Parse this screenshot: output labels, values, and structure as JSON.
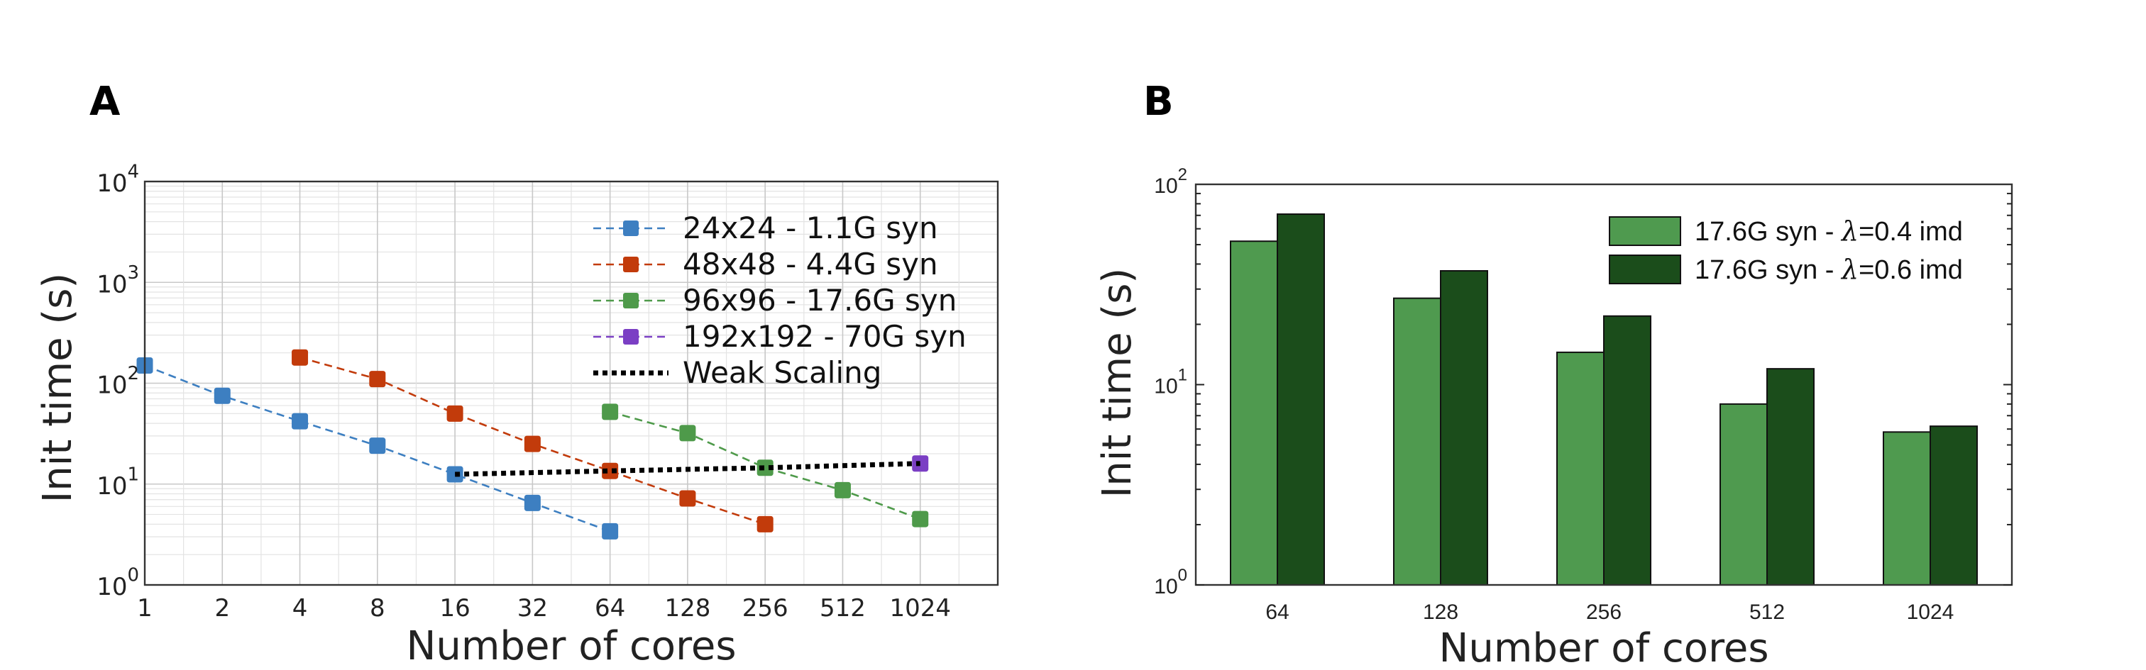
{
  "chart_data": [
    {
      "panel": "A",
      "type": "line",
      "title": "",
      "xlabel": "Number of cores",
      "ylabel": "Init time (s)",
      "xscale": "log2",
      "yscale": "log10",
      "xlim": [
        1,
        2048
      ],
      "ylim": [
        1,
        10000
      ],
      "xticks": [
        "1",
        "2",
        "4",
        "8",
        "16",
        "32",
        "64",
        "128",
        "256",
        "512",
        "1024"
      ],
      "xtick_values": [
        1,
        2,
        4,
        8,
        16,
        32,
        64,
        128,
        256,
        512,
        1024
      ],
      "yticks": [
        {
          "value": 1,
          "base": "10",
          "exp": "0"
        },
        {
          "value": 10,
          "base": "10",
          "exp": "1"
        },
        {
          "value": 100,
          "base": "10",
          "exp": "2"
        },
        {
          "value": 1000,
          "base": "10",
          "exp": "3"
        },
        {
          "value": 10000,
          "base": "10",
          "exp": "4"
        }
      ],
      "grid": true,
      "legend_position": "top-right",
      "series": [
        {
          "name": "24x24 - 1.1G syn",
          "color": "#3d7fc1",
          "style": "dashed",
          "marker": "square",
          "x": [
            1,
            2,
            4,
            8,
            16,
            32,
            64
          ],
          "y": [
            150,
            75,
            42,
            24,
            12.5,
            6.5,
            3.4
          ]
        },
        {
          "name": "48x48 - 4.4G syn",
          "color": "#c23b0b",
          "style": "dashed",
          "marker": "square",
          "x": [
            4,
            8,
            16,
            32,
            64,
            128,
            256
          ],
          "y": [
            180,
            110,
            50,
            25,
            13.5,
            7.2,
            4.0
          ]
        },
        {
          "name": "96x96 - 17.6G syn",
          "color": "#4e9a4a",
          "style": "dashed",
          "marker": "square",
          "x": [
            64,
            128,
            256,
            512,
            1024
          ],
          "y": [
            52,
            32,
            14.5,
            8.7,
            4.5
          ]
        },
        {
          "name": "192x192 - 70G syn",
          "color": "#7b3fc4",
          "style": "dashed",
          "marker": "square",
          "x": [
            1024
          ],
          "y": [
            16
          ]
        },
        {
          "name": "Weak Scaling",
          "color": "#000000",
          "style": "dotted",
          "marker": "none",
          "x": [
            16,
            64,
            256,
            1024
          ],
          "y": [
            12.5,
            13.5,
            14.5,
            16
          ]
        }
      ]
    },
    {
      "panel": "B",
      "type": "bar",
      "title": "",
      "xlabel": "Number of cores",
      "ylabel": "Init time (s)",
      "yscale": "log10",
      "ylim": [
        1,
        100
      ],
      "categories": [
        "64",
        "128",
        "256",
        "512",
        "1024"
      ],
      "yticks": [
        {
          "value": 1,
          "base": "10",
          "exp": "0"
        },
        {
          "value": 10,
          "base": "10",
          "exp": "1"
        },
        {
          "value": 100,
          "base": "10",
          "exp": "2"
        }
      ],
      "legend_position": "top-right",
      "series": [
        {
          "name_prefix": "17.6G syn - ",
          "lambda_symbol": "λ",
          "name_suffix": "=0.4 imd",
          "color": "#4f9a4f",
          "values": [
            52,
            27,
            14.5,
            8,
            5.8
          ]
        },
        {
          "name_prefix": "17.6G syn - ",
          "lambda_symbol": "λ",
          "name_suffix": "=0.6 imd",
          "color": "#1b4d1b",
          "values": [
            71,
            37,
            22,
            12,
            6.2
          ]
        }
      ]
    }
  ]
}
